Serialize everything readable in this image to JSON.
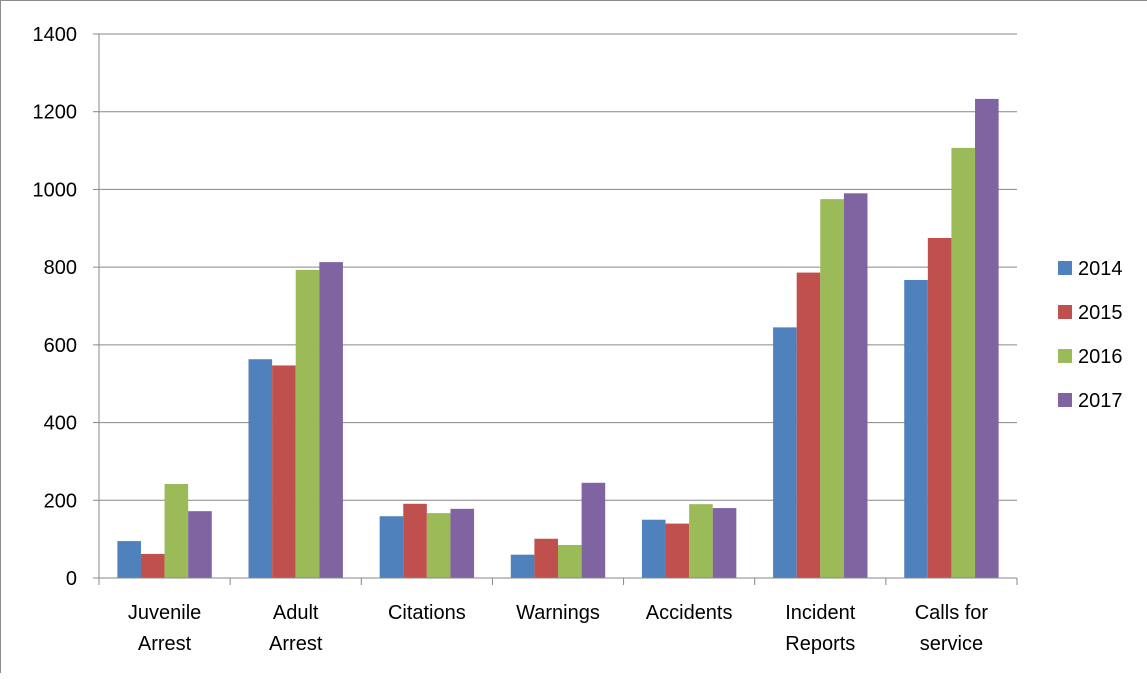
{
  "chart_data": {
    "type": "bar",
    "title": "",
    "xlabel": "",
    "ylabel": "",
    "ylim": [
      0,
      1400
    ],
    "yticks": [
      0,
      200,
      400,
      600,
      800,
      1000,
      1200,
      1400
    ],
    "grid": true,
    "legend_position": "right",
    "categories": [
      [
        "Juvenile",
        "Arrest"
      ],
      [
        "Adult",
        "Arrest"
      ],
      [
        "Citations"
      ],
      [
        "Warnings"
      ],
      [
        "Accidents"
      ],
      [
        "Incident",
        "Reports"
      ],
      [
        "Calls for",
        "service"
      ]
    ],
    "series": [
      {
        "name": "2014",
        "color": "#4f81bd",
        "values": [
          95,
          563,
          159,
          60,
          150,
          645,
          767
        ]
      },
      {
        "name": "2015",
        "color": "#c0504d",
        "values": [
          62,
          547,
          191,
          101,
          140,
          786,
          875
        ]
      },
      {
        "name": "2016",
        "color": "#9bbb59",
        "values": [
          242,
          793,
          167,
          85,
          190,
          975,
          1107
        ]
      },
      {
        "name": "2017",
        "color": "#8064a2",
        "values": [
          172,
          813,
          178,
          245,
          180,
          990,
          1233
        ]
      }
    ]
  }
}
